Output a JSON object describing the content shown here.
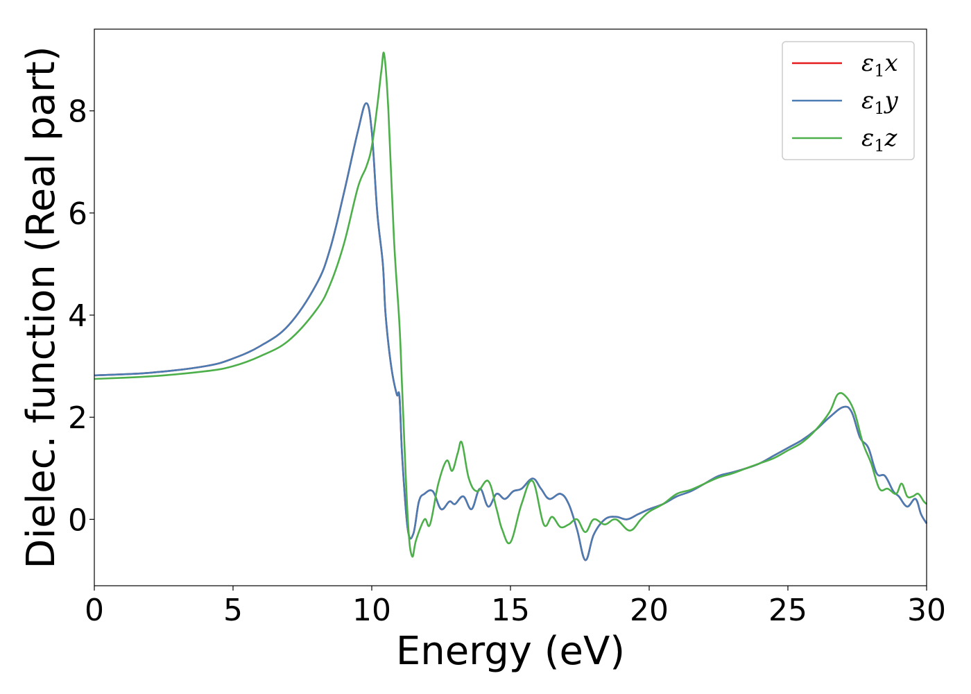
{
  "chart_data": {
    "type": "line",
    "title": "",
    "xlabel": "Energy (eV)",
    "ylabel": "Dielec. function (Real part)",
    "xlim": [
      0,
      30
    ],
    "ylim": [
      -1.3,
      9.6
    ],
    "xticks": [
      "0",
      "5",
      "10",
      "15",
      "20",
      "25",
      "30"
    ],
    "yticks": [
      "0",
      "2",
      "4",
      "6",
      "8"
    ],
    "grid": false,
    "legend_position": "top-right",
    "series": [
      {
        "name": "ε₁x",
        "label_base": "ε",
        "label_sub": "1",
        "label_suffix": "x",
        "color": "#e41a1c",
        "x": [
          0,
          2,
          4,
          5,
          6,
          7,
          8,
          8.5,
          9,
          9.5,
          9.8,
          10.0,
          10.2,
          10.4,
          10.5,
          10.7,
          10.9,
          11.0,
          11.1,
          11.3,
          11.5,
          11.7,
          11.9,
          12.2,
          12.5,
          12.8,
          13.0,
          13.3,
          13.6,
          13.9,
          14.2,
          14.5,
          14.8,
          15.1,
          15.4,
          15.8,
          16.1,
          16.4,
          16.8,
          17.1,
          17.4,
          17.7,
          18.0,
          18.4,
          18.8,
          19.2,
          19.6,
          20.0,
          20.5,
          21.0,
          21.5,
          22.0,
          22.5,
          23.0,
          23.5,
          24.0,
          24.5,
          25.0,
          25.5,
          26.0,
          26.5,
          27.0,
          27.3,
          27.6,
          27.9,
          28.2,
          28.5,
          28.8,
          29.0,
          29.3,
          29.6,
          29.8,
          30.0
        ],
        "values": [
          2.82,
          2.87,
          3.0,
          3.15,
          3.4,
          3.8,
          4.6,
          5.3,
          6.4,
          7.6,
          8.15,
          7.6,
          6.0,
          5.0,
          4.0,
          3.0,
          2.45,
          2.4,
          1.2,
          -0.2,
          -0.28,
          0.35,
          0.5,
          0.55,
          0.2,
          0.35,
          0.3,
          0.45,
          0.2,
          0.6,
          0.25,
          0.5,
          0.4,
          0.55,
          0.6,
          0.8,
          0.6,
          0.4,
          0.5,
          0.3,
          -0.2,
          -0.8,
          -0.3,
          0.0,
          0.05,
          0.0,
          0.1,
          0.2,
          0.3,
          0.45,
          0.55,
          0.7,
          0.85,
          0.92,
          1.0,
          1.1,
          1.25,
          1.4,
          1.55,
          1.75,
          2.0,
          2.2,
          2.1,
          1.6,
          1.4,
          0.9,
          0.85,
          0.55,
          0.45,
          0.25,
          0.4,
          0.1,
          -0.08
        ]
      },
      {
        "name": "ε₁y",
        "label_base": "ε",
        "label_sub": "1",
        "label_suffix": "y",
        "color": "#4a7cb4",
        "x": [
          0,
          2,
          4,
          5,
          6,
          7,
          8,
          8.5,
          9,
          9.5,
          9.8,
          10.0,
          10.2,
          10.4,
          10.5,
          10.7,
          10.9,
          11.0,
          11.1,
          11.3,
          11.5,
          11.7,
          11.9,
          12.2,
          12.5,
          12.8,
          13.0,
          13.3,
          13.6,
          13.9,
          14.2,
          14.5,
          14.8,
          15.1,
          15.4,
          15.8,
          16.1,
          16.4,
          16.8,
          17.1,
          17.4,
          17.7,
          18.0,
          18.4,
          18.8,
          19.2,
          19.6,
          20.0,
          20.5,
          21.0,
          21.5,
          22.0,
          22.5,
          23.0,
          23.5,
          24.0,
          24.5,
          25.0,
          25.5,
          26.0,
          26.5,
          27.0,
          27.3,
          27.6,
          27.9,
          28.2,
          28.5,
          28.8,
          29.0,
          29.3,
          29.6,
          29.8,
          30.0
        ],
        "values": [
          2.82,
          2.87,
          3.0,
          3.15,
          3.4,
          3.8,
          4.6,
          5.3,
          6.4,
          7.6,
          8.15,
          7.6,
          6.0,
          5.0,
          4.0,
          3.0,
          2.45,
          2.4,
          1.2,
          -0.2,
          -0.28,
          0.35,
          0.5,
          0.55,
          0.2,
          0.35,
          0.3,
          0.45,
          0.2,
          0.6,
          0.25,
          0.5,
          0.4,
          0.55,
          0.6,
          0.8,
          0.6,
          0.4,
          0.5,
          0.3,
          -0.2,
          -0.8,
          -0.3,
          0.0,
          0.05,
          0.0,
          0.1,
          0.2,
          0.3,
          0.45,
          0.55,
          0.7,
          0.85,
          0.92,
          1.0,
          1.1,
          1.25,
          1.4,
          1.55,
          1.75,
          2.0,
          2.2,
          2.1,
          1.6,
          1.4,
          0.9,
          0.85,
          0.55,
          0.45,
          0.25,
          0.4,
          0.1,
          -0.08
        ]
      },
      {
        "name": "ε₁z",
        "label_base": "ε",
        "label_sub": "1",
        "label_suffix": "z",
        "color": "#4daf4a",
        "x": [
          0,
          2,
          4,
          5,
          6,
          7,
          8,
          8.5,
          9,
          9.5,
          9.8,
          10.0,
          10.2,
          10.35,
          10.45,
          10.6,
          10.8,
          11.0,
          11.1,
          11.3,
          11.45,
          11.6,
          11.9,
          12.1,
          12.4,
          12.7,
          12.9,
          13.1,
          13.25,
          13.5,
          13.8,
          14.2,
          14.5,
          14.7,
          15.0,
          15.4,
          15.8,
          16.2,
          16.5,
          16.8,
          17.1,
          17.4,
          17.7,
          18.0,
          18.4,
          18.8,
          19.3,
          19.7,
          20.0,
          20.5,
          21.0,
          21.5,
          22.0,
          22.5,
          23.0,
          23.5,
          24.0,
          24.5,
          25.0,
          25.5,
          26.0,
          26.5,
          26.8,
          27.1,
          27.4,
          27.7,
          28.0,
          28.3,
          28.6,
          28.9,
          29.1,
          29.3,
          29.5,
          29.7,
          29.9,
          30.0
        ],
        "values": [
          2.75,
          2.8,
          2.9,
          3.0,
          3.2,
          3.5,
          4.1,
          4.6,
          5.4,
          6.5,
          6.9,
          7.3,
          8.1,
          8.8,
          9.1,
          8.0,
          5.5,
          3.8,
          2.5,
          0.0,
          -0.72,
          -0.4,
          0.0,
          -0.1,
          0.7,
          1.15,
          0.95,
          1.3,
          1.5,
          0.8,
          0.55,
          0.75,
          0.2,
          -0.2,
          -0.45,
          0.3,
          0.75,
          -0.1,
          0.05,
          -0.15,
          -0.1,
          0.0,
          -0.25,
          0.0,
          -0.1,
          0.0,
          -0.22,
          0.0,
          0.15,
          0.3,
          0.5,
          0.58,
          0.7,
          0.82,
          0.9,
          1.0,
          1.1,
          1.2,
          1.35,
          1.5,
          1.75,
          2.1,
          2.45,
          2.4,
          2.1,
          1.5,
          1.1,
          0.6,
          0.6,
          0.5,
          0.7,
          0.45,
          0.45,
          0.5,
          0.35,
          0.3
        ]
      }
    ]
  }
}
